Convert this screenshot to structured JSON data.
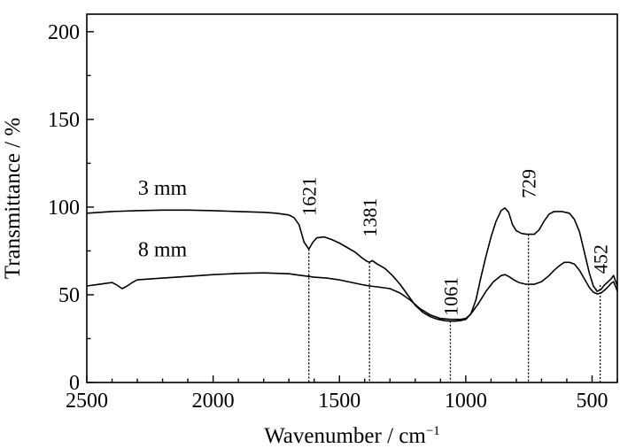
{
  "chart_data": {
    "type": "line",
    "xlabel": "Wavenumber / cm",
    "xlabel_sup": "−1",
    "ylabel": "Transmittance / %",
    "xlim": [
      2500,
      400
    ],
    "ylim": [
      0,
      210
    ],
    "x_reversed": true,
    "xticks": [
      2500,
      2000,
      1500,
      1000,
      500
    ],
    "yticks": [
      0,
      50,
      100,
      150,
      200
    ],
    "grid": false,
    "series": [
      {
        "name": "3 mm",
        "color": "#000000",
        "points": [
          [
            2500,
            96.5
          ],
          [
            2400,
            97.5
          ],
          [
            2300,
            98.0
          ],
          [
            2200,
            98.3
          ],
          [
            2100,
            98.3
          ],
          [
            2000,
            98.0
          ],
          [
            1900,
            97.5
          ],
          [
            1800,
            97.0
          ],
          [
            1750,
            96.5
          ],
          [
            1700,
            95.5
          ],
          [
            1680,
            94.0
          ],
          [
            1660,
            90.0
          ],
          [
            1640,
            80.0
          ],
          [
            1621,
            76.0
          ],
          [
            1605,
            80.0
          ],
          [
            1590,
            82.5
          ],
          [
            1560,
            83.0
          ],
          [
            1530,
            81.5
          ],
          [
            1500,
            79.5
          ],
          [
            1470,
            77.0
          ],
          [
            1440,
            74.5
          ],
          [
            1410,
            71.0
          ],
          [
            1390,
            69.0
          ],
          [
            1381,
            68.5
          ],
          [
            1370,
            69.5
          ],
          [
            1350,
            67.5
          ],
          [
            1320,
            65.0
          ],
          [
            1290,
            61.0
          ],
          [
            1260,
            56.0
          ],
          [
            1230,
            50.0
          ],
          [
            1200,
            44.0
          ],
          [
            1170,
            40.0
          ],
          [
            1140,
            37.5
          ],
          [
            1110,
            36.0
          ],
          [
            1080,
            35.2
          ],
          [
            1061,
            35.0
          ],
          [
            1040,
            35.0
          ],
          [
            1020,
            35.3
          ],
          [
            1000,
            36.0
          ],
          [
            980,
            39.0
          ],
          [
            960,
            47.0
          ],
          [
            940,
            60.0
          ],
          [
            920,
            72.0
          ],
          [
            900,
            83.0
          ],
          [
            880,
            92.0
          ],
          [
            860,
            98.0
          ],
          [
            845,
            99.5
          ],
          [
            830,
            97.0
          ],
          [
            815,
            90.0
          ],
          [
            800,
            86.5
          ],
          [
            780,
            85.0
          ],
          [
            760,
            84.5
          ],
          [
            740,
            84.5
          ],
          [
            729,
            84.5
          ],
          [
            710,
            87.0
          ],
          [
            690,
            92.0
          ],
          [
            670,
            96.0
          ],
          [
            650,
            97.5
          ],
          [
            620,
            97.5
          ],
          [
            590,
            96.5
          ],
          [
            570,
            93.0
          ],
          [
            550,
            86.0
          ],
          [
            530,
            74.0
          ],
          [
            510,
            62.0
          ],
          [
            495,
            55.0
          ],
          [
            480,
            52.0
          ],
          [
            465,
            53.0
          ],
          [
            452,
            55.5
          ],
          [
            440,
            57.0
          ],
          [
            425,
            59.0
          ],
          [
            415,
            61.0
          ],
          [
            405,
            57.0
          ],
          [
            400,
            55.0
          ]
        ]
      },
      {
        "name": "8 mm",
        "color": "#000000",
        "points": [
          [
            2500,
            55.0
          ],
          [
            2450,
            56.0
          ],
          [
            2400,
            57.0
          ],
          [
            2380,
            55.5
          ],
          [
            2360,
            53.5
          ],
          [
            2340,
            55.0
          ],
          [
            2320,
            57.0
          ],
          [
            2300,
            58.5
          ],
          [
            2200,
            59.5
          ],
          [
            2100,
            60.5
          ],
          [
            2000,
            61.5
          ],
          [
            1900,
            62.2
          ],
          [
            1800,
            62.5
          ],
          [
            1700,
            62.0
          ],
          [
            1650,
            61.0
          ],
          [
            1621,
            60.5
          ],
          [
            1600,
            60.0
          ],
          [
            1550,
            59.5
          ],
          [
            1500,
            58.5
          ],
          [
            1450,
            57.0
          ],
          [
            1400,
            55.5
          ],
          [
            1381,
            55.0
          ],
          [
            1350,
            54.5
          ],
          [
            1300,
            53.5
          ],
          [
            1260,
            51.0
          ],
          [
            1220,
            47.0
          ],
          [
            1180,
            42.0
          ],
          [
            1140,
            38.5
          ],
          [
            1100,
            36.5
          ],
          [
            1061,
            36.0
          ],
          [
            1020,
            36.0
          ],
          [
            1000,
            36.5
          ],
          [
            980,
            39.0
          ],
          [
            950,
            45.0
          ],
          [
            920,
            52.0
          ],
          [
            890,
            57.5
          ],
          [
            860,
            61.0
          ],
          [
            845,
            61.5
          ],
          [
            830,
            60.5
          ],
          [
            810,
            58.5
          ],
          [
            790,
            57.0
          ],
          [
            760,
            56.0
          ],
          [
            729,
            56.0
          ],
          [
            700,
            57.5
          ],
          [
            670,
            61.0
          ],
          [
            650,
            64.0
          ],
          [
            630,
            66.5
          ],
          [
            610,
            68.5
          ],
          [
            590,
            68.5
          ],
          [
            570,
            67.5
          ],
          [
            550,
            64.0
          ],
          [
            530,
            59.0
          ],
          [
            510,
            54.0
          ],
          [
            495,
            51.5
          ],
          [
            480,
            50.5
          ],
          [
            465,
            51.0
          ],
          [
            452,
            52.5
          ],
          [
            440,
            54.0
          ],
          [
            425,
            56.5
          ],
          [
            415,
            57.5
          ],
          [
            405,
            54.0
          ],
          [
            400,
            52.0
          ]
        ]
      }
    ],
    "series_labels": [
      {
        "text": "3 mm",
        "x": 2200,
        "y": 107
      },
      {
        "text": "8 mm",
        "x": 2200,
        "y": 72
      }
    ],
    "peaks": [
      {
        "label": "1621",
        "x": 1621,
        "y_top": 76.0,
        "label_y": 95
      },
      {
        "label": "1381",
        "x": 1381,
        "y_top": 68.5,
        "label_y": 83
      },
      {
        "label": "1061",
        "x": 1061,
        "y_top": 35.0,
        "label_y": 38
      },
      {
        "label": "729",
        "x": 752,
        "y_top": 84.5,
        "label_y": 105
      },
      {
        "label": "452",
        "x": 468,
        "y_top": 55.5,
        "label_y": 62
      }
    ]
  }
}
